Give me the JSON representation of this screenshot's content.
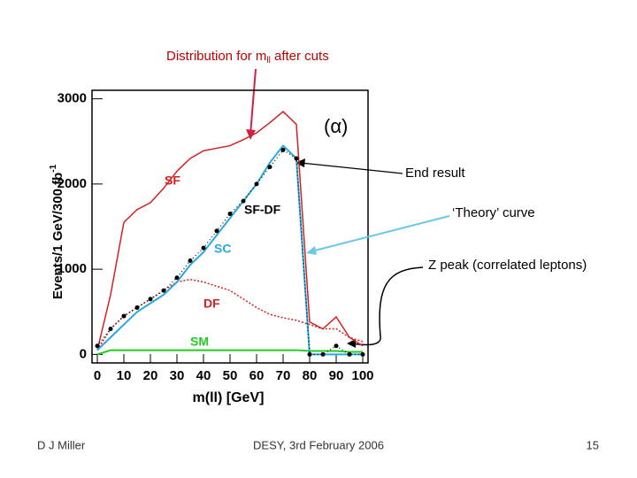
{
  "chart_data": {
    "type": "line",
    "title": "Distribution for m",
    "title_subscript": "ll",
    "title_tail": " after cuts",
    "ylabel": "Events/1 GeV/300 fb",
    "ylabel_superscript": "-1",
    "xlabel": "m(ll) [GeV]",
    "panel_label": "(α)",
    "annotations": [
      "End result",
      "‘Theory’ curve",
      "Z peak (correlated leptons)"
    ],
    "x": [
      0,
      5,
      10,
      15,
      20,
      25,
      30,
      35,
      40,
      45,
      50,
      55,
      60,
      65,
      70,
      75,
      80,
      85,
      90,
      95,
      100
    ],
    "series": [
      {
        "name": "SF",
        "color": "#d42020",
        "values": [
          50,
          700,
          1550,
          1700,
          1780,
          1950,
          2150,
          2300,
          2390,
          2420,
          2450,
          2520,
          2600,
          2720,
          2850,
          2700,
          380,
          300,
          440,
          200,
          100
        ]
      },
      {
        "name": "SF-DF",
        "color": "#000000",
        "values": [
          100,
          300,
          450,
          550,
          650,
          750,
          900,
          1100,
          1250,
          1450,
          1650,
          1800,
          2000,
          2200,
          2400,
          2300,
          0,
          0,
          100,
          0,
          0
        ]
      },
      {
        "name": "SC",
        "color": "#29a8e0",
        "values": [
          50,
          200,
          350,
          500,
          600,
          700,
          850,
          1050,
          1200,
          1400,
          1600,
          1800,
          2000,
          2250,
          2450,
          2300,
          0,
          0,
          0,
          0,
          0
        ]
      },
      {
        "name": "DF",
        "color": "#d42020",
        "values": [
          50,
          300,
          450,
          550,
          650,
          750,
          850,
          880,
          850,
          800,
          750,
          650,
          550,
          470,
          430,
          400,
          350,
          300,
          300,
          200,
          150
        ]
      },
      {
        "name": "SM",
        "color": "#22cc22",
        "values": [
          0,
          50,
          50,
          50,
          50,
          50,
          50,
          50,
          50,
          50,
          50,
          50,
          50,
          50,
          50,
          50,
          40,
          40,
          40,
          30,
          30
        ]
      }
    ],
    "xlim": [
      -2,
      102
    ],
    "ylim": [
      -100,
      3100
    ],
    "xticks": [
      0,
      10,
      20,
      30,
      40,
      50,
      60,
      70,
      80,
      90,
      100
    ],
    "yticks": [
      0,
      1000,
      2000,
      3000
    ]
  },
  "footer": {
    "author": "D J Miller",
    "event": "DESY, 3rd February 2006",
    "page": "15"
  }
}
